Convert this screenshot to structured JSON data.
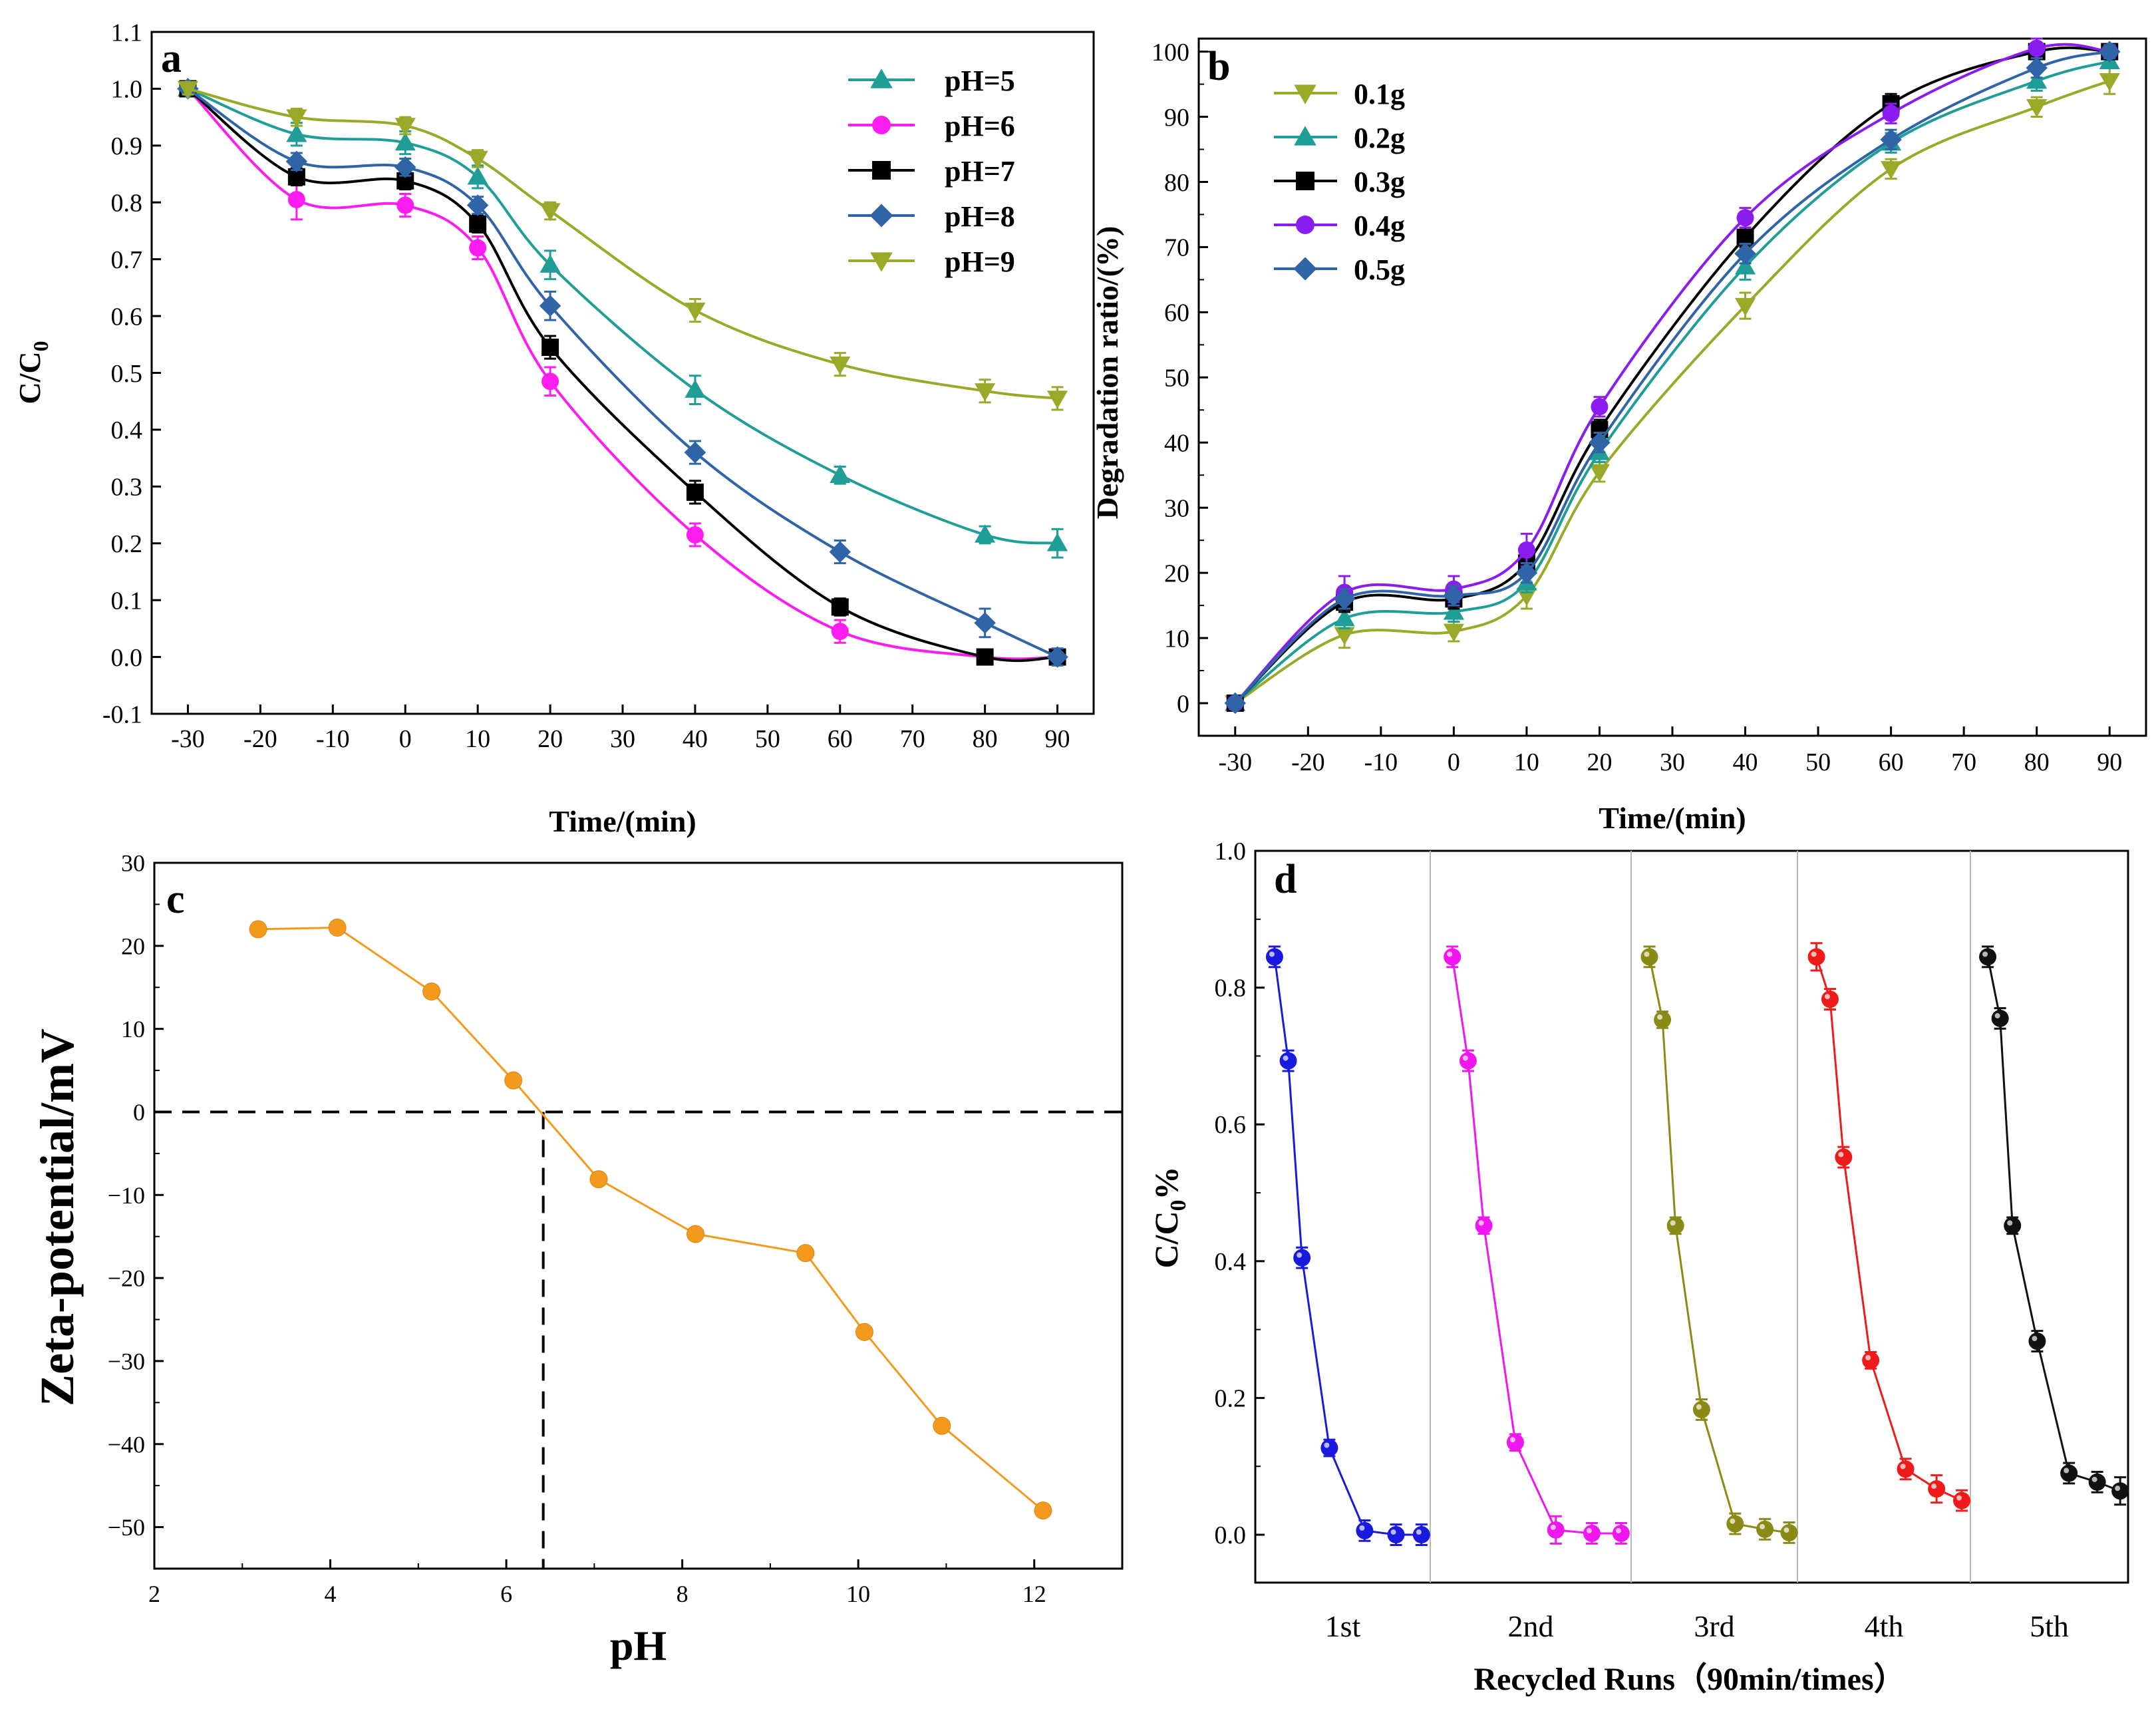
{
  "chart_data": [
    {
      "panel": "a",
      "type": "line",
      "xlabel": "Time/(min)",
      "ylabel_main": "C/C",
      "ylabel_sub": "0",
      "xlim": [
        -35,
        95
      ],
      "ylim": [
        -0.1,
        1.1
      ],
      "xticks": [
        -30,
        -20,
        -10,
        0,
        10,
        20,
        30,
        40,
        50,
        60,
        70,
        80,
        90
      ],
      "xtick_labels": [
        "-30",
        "-20",
        "-10",
        "0",
        "10",
        "20",
        "30",
        "40",
        "50",
        "60",
        "70",
        "80",
        "90"
      ],
      "yticks": [
        -0.1,
        0.0,
        0.1,
        0.2,
        0.3,
        0.4,
        0.5,
        0.6,
        0.7,
        0.8,
        0.9,
        1.0,
        1.1
      ],
      "ytick_labels": [
        "-0.1",
        "0.0",
        "0.1",
        "0.2",
        "0.3",
        "0.4",
        "0.5",
        "0.6",
        "0.7",
        "0.8",
        "0.9",
        "1.0",
        "1.1"
      ],
      "legend_position": "top-right",
      "x": [
        -30,
        -15,
        0,
        10,
        20,
        40,
        60,
        80,
        90
      ],
      "series": [
        {
          "name": "pH=5",
          "color": "#1f9e98",
          "marker": "triangle-up",
          "values": [
            1.0,
            0.92,
            0.905,
            0.845,
            0.69,
            0.47,
            0.32,
            0.215,
            0.2
          ],
          "errors": [
            0.01,
            0.02,
            0.02,
            0.02,
            0.025,
            0.025,
            0.015,
            0.015,
            0.025
          ]
        },
        {
          "name": "pH=6",
          "color": "#ff1cf0",
          "marker": "circle",
          "values": [
            1.0,
            0.805,
            0.795,
            0.72,
            0.485,
            0.215,
            0.045,
            0.0,
            0.0
          ],
          "errors": [
            0.01,
            0.035,
            0.02,
            0.02,
            0.025,
            0.02,
            0.02,
            0.01,
            0.01
          ]
        },
        {
          "name": "pH=7",
          "color": "#000000",
          "marker": "square",
          "values": [
            1.0,
            0.845,
            0.838,
            0.762,
            0.545,
            0.29,
            0.088,
            0.0,
            0.0
          ],
          "errors": [
            0.01,
            0.015,
            0.015,
            0.015,
            0.02,
            0.02,
            0.015,
            0.01,
            0.01
          ]
        },
        {
          "name": "pH=8",
          "color": "#2f64a6",
          "marker": "diamond",
          "values": [
            1.0,
            0.872,
            0.862,
            0.795,
            0.618,
            0.36,
            0.185,
            0.06,
            0.0
          ],
          "errors": [
            0.01,
            0.015,
            0.015,
            0.015,
            0.025,
            0.02,
            0.02,
            0.025,
            0.015
          ]
        },
        {
          "name": "pH=9",
          "color": "#9aaa28",
          "marker": "triangle-down",
          "values": [
            1.0,
            0.95,
            0.935,
            0.877,
            0.785,
            0.61,
            0.515,
            0.468,
            0.455
          ],
          "errors": [
            0.01,
            0.015,
            0.015,
            0.015,
            0.015,
            0.02,
            0.02,
            0.02,
            0.02
          ]
        }
      ]
    },
    {
      "panel": "b",
      "type": "line",
      "xlabel": "Time/(min)",
      "ylabel": "Degradation ratio/(%)",
      "xlim": [
        -35,
        95
      ],
      "ylim": [
        -5,
        102
      ],
      "xticks": [
        -30,
        -20,
        -10,
        0,
        10,
        20,
        30,
        40,
        50,
        60,
        70,
        80,
        90
      ],
      "xtick_labels": [
        "-30",
        "-20",
        "-10",
        "0",
        "10",
        "20",
        "30",
        "40",
        "50",
        "60",
        "70",
        "80",
        "90"
      ],
      "yticks": [
        0,
        10,
        20,
        30,
        40,
        50,
        60,
        70,
        80,
        90,
        100
      ],
      "ytick_labels": [
        "0",
        "10",
        "20",
        "30",
        "40",
        "50",
        "60",
        "70",
        "80",
        "90",
        "100"
      ],
      "legend_position": "top-left",
      "x": [
        -30,
        -15,
        0,
        10,
        20,
        40,
        60,
        80,
        90
      ],
      "series": [
        {
          "name": "0.1g",
          "color": "#9aaa28",
          "marker": "triangle-down",
          "values": [
            0,
            10.5,
            11,
            16.5,
            35.5,
            61,
            82,
            91.5,
            95.5
          ],
          "errors": [
            0.5,
            2,
            1.5,
            2,
            1.5,
            2,
            1.5,
            1.5,
            2
          ]
        },
        {
          "name": "0.2g",
          "color": "#1f9e98",
          "marker": "triangle-up",
          "values": [
            0,
            13,
            14,
            18.5,
            38.5,
            67,
            86,
            95.5,
            98.5
          ],
          "errors": [
            0.5,
            1.5,
            1.5,
            1.5,
            1.5,
            2,
            1.5,
            1.5,
            1
          ]
        },
        {
          "name": "0.3g",
          "color": "#000000",
          "marker": "square",
          "values": [
            0,
            15.5,
            16,
            21.5,
            42,
            71.5,
            92,
            100,
            100
          ],
          "errors": [
            0.5,
            1.5,
            1.5,
            1.5,
            1.5,
            1.5,
            1.5,
            1,
            1
          ]
        },
        {
          "name": "0.4g",
          "color": "#8a1cf0",
          "marker": "circle",
          "values": [
            0,
            17,
            17.5,
            23.5,
            45.5,
            74.5,
            90.5,
            100.5,
            100
          ],
          "errors": [
            0.5,
            2.5,
            2,
            2.5,
            1.5,
            1.5,
            1.5,
            1.5,
            1
          ]
        },
        {
          "name": "0.5g",
          "color": "#2f64a6",
          "marker": "diamond",
          "values": [
            0,
            16,
            16.5,
            20,
            40,
            69,
            86.5,
            97.5,
            100
          ],
          "errors": [
            0.5,
            1.5,
            1.5,
            1.5,
            1.5,
            1.5,
            1.5,
            1.5,
            1
          ]
        }
      ]
    },
    {
      "panel": "c",
      "type": "line",
      "xlabel": "pH",
      "ylabel": "Zeta-potential/mV",
      "xlim": [
        2,
        13
      ],
      "ylim": [
        -55,
        30
      ],
      "xticks": [
        2,
        4,
        6,
        8,
        10,
        12
      ],
      "xtick_labels": [
        "2",
        "4",
        "6",
        "8",
        "10",
        "12"
      ],
      "yticks": [
        -50,
        -40,
        -30,
        -20,
        -10,
        0,
        10,
        20,
        30
      ],
      "ytick_labels": [
        "−50",
        "−40",
        "−30",
        "−20",
        "−10",
        "0",
        "10",
        "20",
        "30"
      ],
      "color": "#f39a1c",
      "x": [
        3.18,
        4.08,
        5.15,
        6.08,
        7.05,
        8.15,
        9.4,
        10.07,
        10.95,
        12.1
      ],
      "values": [
        22,
        22.2,
        14.5,
        3.8,
        -8.1,
        -14.7,
        -17,
        -26.5,
        -37.8,
        -48
      ],
      "zero_line_y": 0,
      "isoelectric_x": 6.42
    },
    {
      "panel": "d",
      "type": "line",
      "xlabel_main": "Recycled Runs",
      "xlabel_paren": "（90min/times）",
      "ylabel_main": "C/C",
      "ylabel_sub": "0",
      "ylabel_suffix": "%",
      "ylim": [
        -0.07,
        1.0
      ],
      "yticks": [
        0.0,
        0.2,
        0.4,
        0.6,
        0.8,
        1.0
      ],
      "ytick_labels": [
        "0.0",
        "0.2",
        "0.4",
        "0.6",
        "0.8",
        "1.0"
      ],
      "runs": [
        {
          "name": "1st",
          "color": "#1a1adf",
          "values": [
            0.845,
            0.693,
            0.405,
            0.127,
            0.006,
            0.0,
            0.0
          ],
          "errors": [
            0.015,
            0.015,
            0.015,
            0.012,
            0.015,
            0.015,
            0.015
          ]
        },
        {
          "name": "2nd",
          "color": "#f016ef",
          "values": [
            0.845,
            0.693,
            0.452,
            0.135,
            0.007,
            0.002,
            0.002
          ],
          "errors": [
            0.015,
            0.015,
            0.012,
            0.012,
            0.02,
            0.015,
            0.015
          ]
        },
        {
          "name": "3rd",
          "color": "#8a8a16",
          "values": [
            0.845,
            0.753,
            0.452,
            0.183,
            0.016,
            0.008,
            0.003
          ],
          "errors": [
            0.015,
            0.012,
            0.012,
            0.015,
            0.015,
            0.015,
            0.015
          ]
        },
        {
          "name": "4th",
          "color": "#ef1a1a",
          "values": [
            0.845,
            0.783,
            0.552,
            0.255,
            0.096,
            0.067,
            0.05
          ],
          "errors": [
            0.02,
            0.015,
            0.015,
            0.012,
            0.015,
            0.02,
            0.015
          ]
        },
        {
          "name": "5th",
          "color": "#111111",
          "values": [
            0.845,
            0.755,
            0.452,
            0.283,
            0.09,
            0.077,
            0.064
          ],
          "errors": [
            0.015,
            0.015,
            0.012,
            0.015,
            0.015,
            0.015,
            0.02
          ]
        }
      ]
    }
  ],
  "panel_labels": {
    "a": "a",
    "b": "b",
    "c": "c",
    "d": "d"
  }
}
